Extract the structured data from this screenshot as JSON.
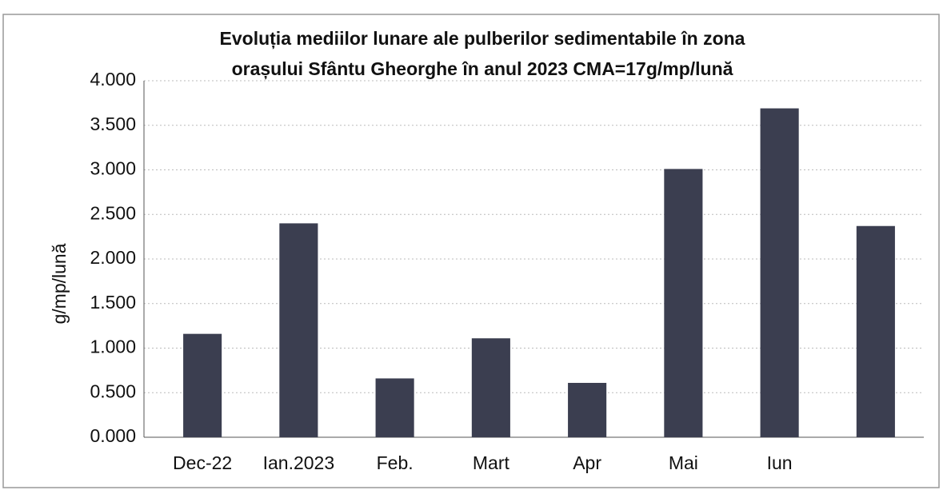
{
  "chart_data": {
    "type": "bar",
    "title": [
      "Evoluția mediilor lunare ale pulberilor sedimentabile în zona",
      "orașului Sfântu Gheorghe în anul 2023     CMA=17g/mp/lună"
    ],
    "y_label": "g/mp/lună",
    "categories": [
      "Dec-22",
      "Ian.2023",
      "Feb.",
      "Mart",
      "Apr",
      "Mai",
      "Iun",
      null
    ],
    "values": [
      1.16,
      2.4,
      0.66,
      1.11,
      0.61,
      3.01,
      3.69,
      2.37
    ],
    "color": "#3b3e50",
    "ylim": [
      0,
      4
    ],
    "yticks": [
      {
        "value": 0,
        "label": "0.000"
      },
      {
        "value": 0.5,
        "label": "0.500"
      },
      {
        "value": 1,
        "label": "1.000"
      },
      {
        "value": 1.5,
        "label": "1.500"
      },
      {
        "value": 2,
        "label": "2.000"
      },
      {
        "value": 2.5,
        "label": "2.500"
      },
      {
        "value": 3,
        "label": "3.000"
      },
      {
        "value": 3.5,
        "label": "3.500"
      },
      {
        "value": 4,
        "label": "4.000"
      }
    ],
    "grid": true
  }
}
